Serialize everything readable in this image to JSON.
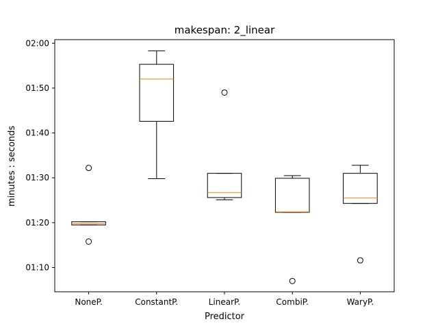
{
  "chart_data": {
    "type": "box",
    "title": "makespan: 2_linear",
    "xlabel": "Predictor",
    "ylabel": "minutes : seconds",
    "categories": [
      "NoneP.",
      "ConstantP.",
      "LinearP.",
      "CombiP.",
      "WaryP."
    ],
    "y_ticks": [
      {
        "value": 70,
        "label": "01:10"
      },
      {
        "value": 80,
        "label": "01:20"
      },
      {
        "value": 90,
        "label": "01:30"
      },
      {
        "value": 100,
        "label": "01:40"
      },
      {
        "value": 110,
        "label": "01:50"
      },
      {
        "value": 120,
        "label": "02:00"
      }
    ],
    "ylim": [
      64.6,
      120.8
    ],
    "y_unit": "seconds",
    "grid": false,
    "boxes": [
      {
        "name": "NoneP.",
        "whisker_low": 79.5,
        "q1": 79.5,
        "median": 79.8,
        "q3": 80.2,
        "whisker_high": 80.2,
        "outliers": [
          92.2,
          75.8
        ]
      },
      {
        "name": "ConstantP.",
        "whisker_low": 89.8,
        "q1": 102.6,
        "median": 112.0,
        "q3": 115.3,
        "whisker_high": 118.3,
        "outliers": []
      },
      {
        "name": "LinearP.",
        "whisker_low": 85.1,
        "q1": 85.6,
        "median": 86.7,
        "q3": 91.0,
        "whisker_high": 91.0,
        "outliers": [
          109.0
        ]
      },
      {
        "name": "CombiP.",
        "whisker_low": 82.3,
        "q1": 82.3,
        "median": 82.4,
        "q3": 89.9,
        "whisker_high": 90.5,
        "outliers": [
          67.0
        ]
      },
      {
        "name": "WaryP.",
        "whisker_low": 84.3,
        "q1": 84.3,
        "median": 85.5,
        "q3": 91.0,
        "whisker_high": 92.8,
        "outliers": [
          71.6
        ]
      }
    ],
    "colors": {
      "box": "#000000",
      "median": "#ff7f0e"
    }
  }
}
